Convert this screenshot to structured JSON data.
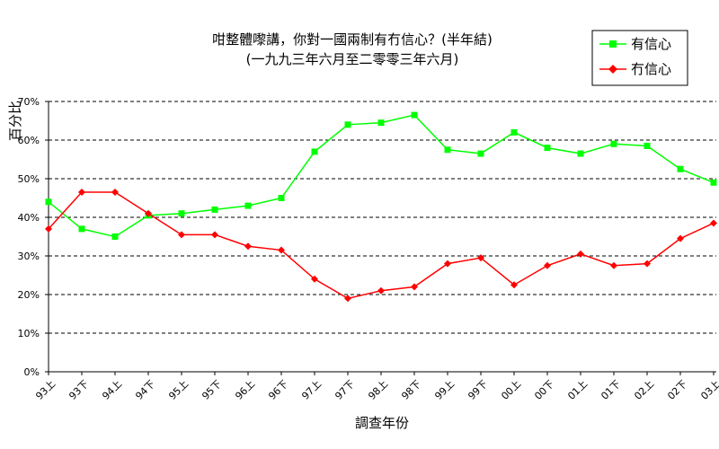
{
  "chart_data": {
    "type": "line",
    "title": "咁整體嚟講，你對一國兩制有冇信心？(半年結)",
    "subtitle": "(一九九三年六月至二零零三年六月)",
    "xlabel": "調查年份",
    "ylabel": "百分比",
    "ylim": [
      0,
      70
    ],
    "yticks": [
      "0%",
      "10%",
      "20%",
      "30%",
      "40%",
      "50%",
      "60%",
      "70%"
    ],
    "grid": "horizontal dashed",
    "legend_position": "top-right",
    "categories": [
      "93上",
      "93下",
      "94上",
      "94下",
      "95上",
      "95下",
      "96上",
      "96下",
      "97上",
      "97下",
      "98上",
      "98下",
      "99上",
      "99下",
      "00上",
      "00下",
      "01上",
      "01下",
      "02上",
      "02下",
      "03上"
    ],
    "series": [
      {
        "name": "有信心",
        "color": "#00ff00",
        "marker": "square",
        "values": [
          44,
          37,
          35,
          40.5,
          41,
          42,
          43,
          45,
          57,
          64,
          64.5,
          66.5,
          57.5,
          56.5,
          62,
          58,
          56.5,
          59,
          58.5,
          52.5,
          49
        ]
      },
      {
        "name": "冇信心",
        "color": "#ff0000",
        "marker": "diamond",
        "values": [
          37,
          46.5,
          46.5,
          41,
          35.5,
          35.5,
          32.5,
          31.5,
          24,
          19,
          21,
          22,
          28,
          29.5,
          22.5,
          27.5,
          30.5,
          27.5,
          28,
          34.5,
          38.5
        ]
      }
    ]
  }
}
